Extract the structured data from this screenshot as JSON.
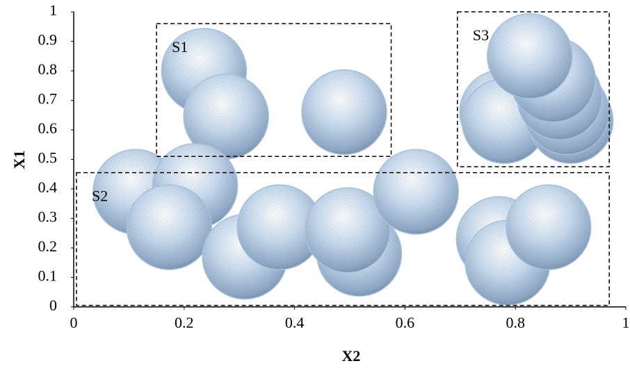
{
  "chart_data": {
    "type": "bubble",
    "x_label": "X2",
    "y_label": "X1",
    "x": [
      0.236,
      0.276,
      0.49,
      0.776,
      0.78,
      0.9,
      0.893,
      0.88,
      0.868,
      0.826,
      0.112,
      0.22,
      0.173,
      0.31,
      0.373,
      0.517,
      0.496,
      0.62,
      0.77,
      0.786,
      0.86
    ],
    "y": [
      0.8,
      0.645,
      0.66,
      0.66,
      0.63,
      0.63,
      0.66,
      0.71,
      0.77,
      0.85,
      0.39,
      0.41,
      0.27,
      0.17,
      0.27,
      0.18,
      0.26,
      0.39,
      0.23,
      0.15,
      0.27
    ],
    "sizes": [
      1,
      1,
      1,
      1,
      1,
      1,
      1,
      1,
      1,
      1,
      1,
      1,
      1,
      1,
      1,
      1,
      1,
      1,
      1,
      1,
      1
    ],
    "color": "#a9c3df",
    "xlim": [
      0,
      1
    ],
    "ylim": [
      0,
      1
    ],
    "xticks": [
      0,
      0.2,
      0.4,
      0.6,
      0.8,
      1
    ],
    "yticks": [
      0,
      0.1,
      0.2,
      0.3,
      0.4,
      0.5,
      0.6,
      0.7,
      0.8,
      0.9,
      1
    ],
    "annotations": [
      {
        "label": "S1",
        "x": [
          0.15,
          0.575
        ],
        "y": [
          0.51,
          0.96
        ]
      },
      {
        "label": "S2",
        "x": [
          0.005,
          0.97
        ],
        "y": [
          0.005,
          0.455
        ]
      },
      {
        "label": "S3",
        "x": [
          0.695,
          0.97
        ],
        "y": [
          0.475,
          1.0
        ]
      }
    ]
  }
}
